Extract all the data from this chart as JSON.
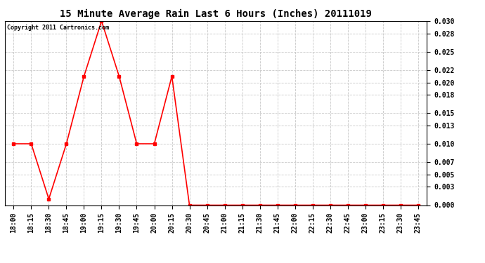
{
  "title": "15 Minute Average Rain Last 6 Hours (Inches) 20111019",
  "copyright_text": "Copyright 2011 Cartronics.com",
  "line_color": "#ff0000",
  "bg_color": "#ffffff",
  "grid_color": "#c8c8c8",
  "x_labels": [
    "18:00",
    "18:15",
    "18:30",
    "18:45",
    "19:00",
    "19:15",
    "19:30",
    "19:45",
    "20:00",
    "20:15",
    "20:30",
    "20:45",
    "21:00",
    "21:15",
    "21:30",
    "21:45",
    "22:00",
    "22:15",
    "22:30",
    "22:45",
    "23:00",
    "23:15",
    "23:30",
    "23:45"
  ],
  "y_values": [
    0.01,
    0.01,
    0.001,
    0.01,
    0.021,
    0.03,
    0.021,
    0.01,
    0.01,
    0.021,
    0.0,
    0.0,
    0.0,
    0.0,
    0.0,
    0.0,
    0.0,
    0.0,
    0.0,
    0.0,
    0.0,
    0.0,
    0.0,
    0.0
  ],
  "yticks": [
    0.0,
    0.003,
    0.005,
    0.007,
    0.01,
    0.013,
    0.015,
    0.018,
    0.02,
    0.022,
    0.025,
    0.028,
    0.03
  ],
  "ylim": [
    0.0,
    0.03
  ],
  "marker": "s",
  "marker_size": 2.5,
  "line_width": 1.2,
  "title_fontsize": 10,
  "tick_fontsize": 7,
  "copyright_fontsize": 6
}
